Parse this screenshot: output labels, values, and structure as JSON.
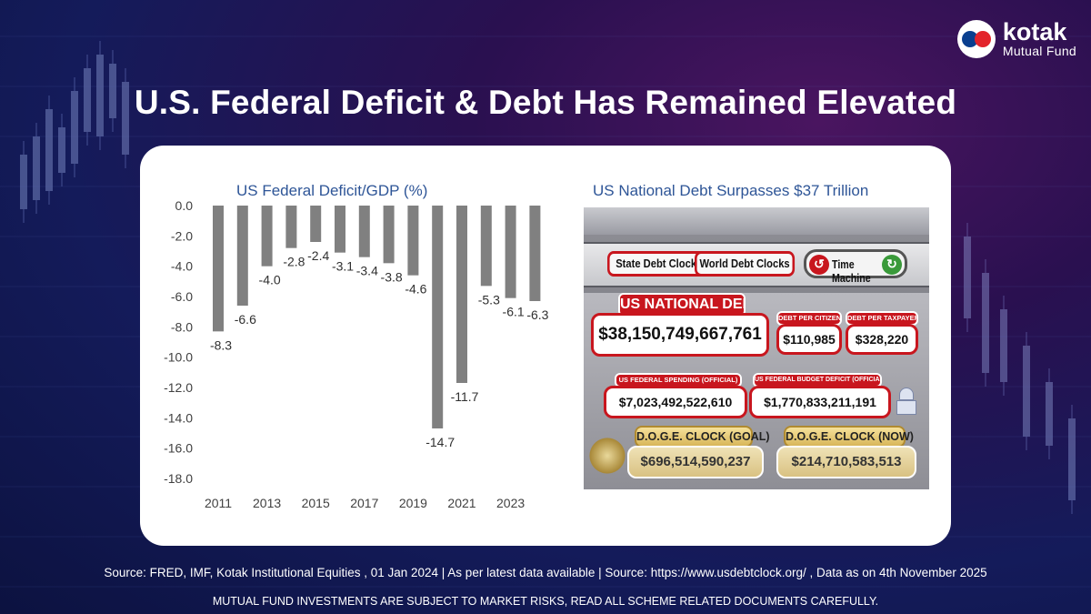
{
  "brand": {
    "name": "kotak",
    "subtitle": "Mutual Fund"
  },
  "headline": "U.S. Federal Deficit & Debt Has Remained Elevated",
  "colors": {
    "bar": "#808080",
    "title_blue": "#2e5597",
    "accent_red": "#c8161e"
  },
  "chart_data": {
    "type": "bar",
    "title": "US Federal Deficit/GDP (%)",
    "categories": [
      "2011",
      "2012",
      "2013",
      "2014",
      "2015",
      "2016",
      "2017",
      "2018",
      "2019",
      "2020",
      "2021",
      "2022",
      "2023",
      "2024"
    ],
    "values": [
      -8.3,
      -6.6,
      -4.0,
      -2.8,
      -2.4,
      -3.1,
      -3.4,
      -3.8,
      -4.6,
      -14.7,
      -11.7,
      -5.3,
      -6.1,
      -6.3
    ],
    "data_labels": [
      "-8.3",
      "-6.6",
      "-4.0",
      "-2.8",
      "-2.4",
      "-3.1",
      "-3.4",
      "-3.8",
      "-4.6",
      "-14.7",
      "-11.7",
      "-5.3",
      "-6.1",
      "-6.3"
    ],
    "x_tick_labels": [
      "2011",
      "2013",
      "2015",
      "2017",
      "2019",
      "2021",
      "2023"
    ],
    "y_tick_labels": [
      "0.0",
      "-2.0",
      "-4.0",
      "-6.0",
      "-8.0",
      "-10.0",
      "-12.0",
      "-14.0",
      "-16.0",
      "-18.0"
    ],
    "ylim": [
      -18,
      0
    ],
    "xlabel": "",
    "ylabel": ""
  },
  "debt_panel": {
    "title": "US National Debt Surpasses $37 Trillion",
    "tabs": [
      "State Debt Clocks",
      "World Debt Clocks"
    ],
    "time_machine": "Time Machine",
    "national_debt_label": "US NATIONAL DEBT",
    "national_debt": "$38,150,749,667,761",
    "per_citizen_label": "DEBT PER CITIZEN",
    "per_citizen": "$110,985",
    "per_taxpayer_label": "DEBT PER TAXPAYER",
    "per_taxpayer": "$328,220",
    "spending_label": "US FEDERAL SPENDING (OFFICIAL)",
    "spending": "$7,023,492,522,610",
    "deficit_label": "US FEDERAL BUDGET DEFICIT (OFFICIAL)",
    "deficit": "$1,770,833,211,191",
    "doge_goal_label": "D.O.G.E. CLOCK (GOAL)",
    "doge_goal": "$696,514,590,237",
    "doge_now_label": "D.O.G.E. CLOCK (NOW)",
    "doge_now": "$214,710,583,513"
  },
  "source": "Source: FRED, IMF, Kotak Institutional Equities , 01 Jan 2024 | As per latest data available  |  Source: https://www.usdebtclock.org/ , Data as on 4th November 2025",
  "disclaimer": "MUTUAL FUND INVESTMENTS ARE SUBJECT TO MARKET RISKS, READ ALL SCHEME RELATED DOCUMENTS CAREFULLY."
}
